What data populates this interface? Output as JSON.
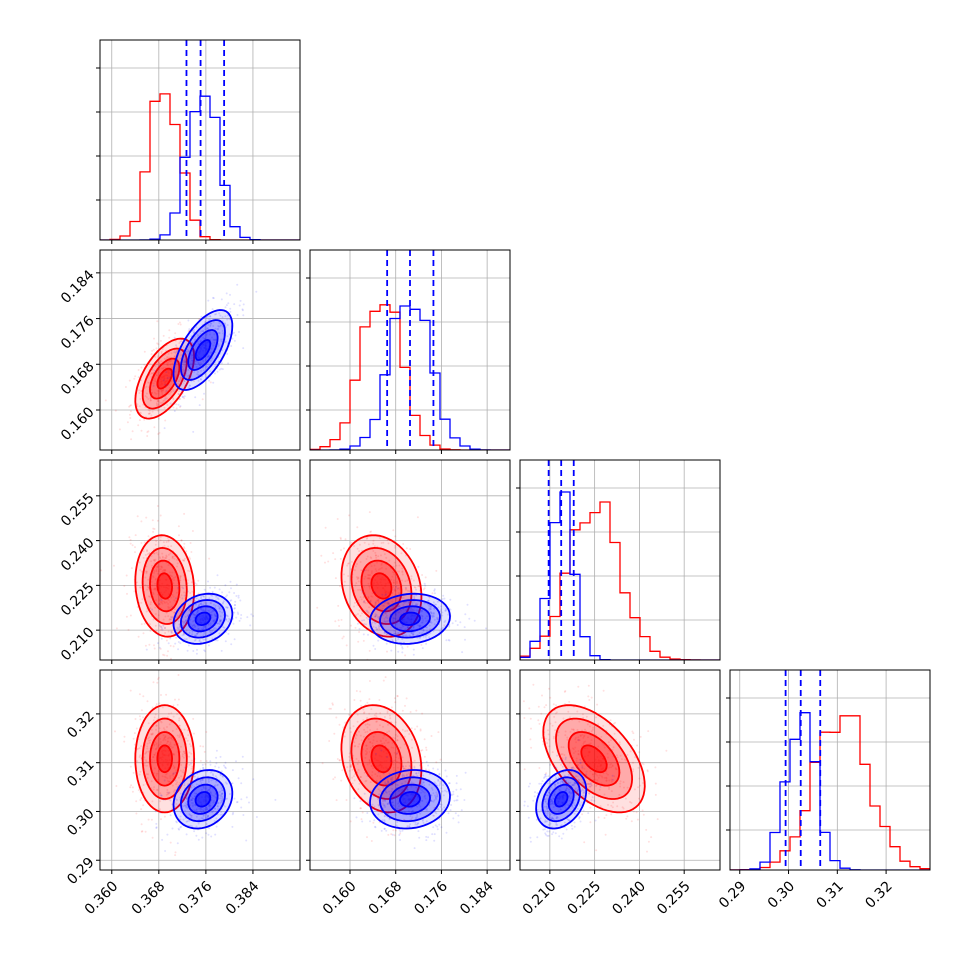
{
  "colors": {
    "series_a": "#ff0000",
    "series_b": "#0000ff",
    "grid": "#b0b0b0",
    "axis": "#000000"
  },
  "chart_data": {
    "type": "corner",
    "grid": true,
    "parameters": [
      {
        "range": [
          0.358,
          0.392
        ],
        "ticks": [
          0.36,
          0.368,
          0.376,
          0.384
        ],
        "tick_labels": [
          "0.360",
          "0.368",
          "0.376",
          "0.384"
        ]
      },
      {
        "range": [
          0.153,
          0.188
        ],
        "ticks": [
          0.16,
          0.168,
          0.176,
          0.184
        ],
        "tick_labels": [
          "0.160",
          "0.168",
          "0.176",
          "0.184"
        ]
      },
      {
        "range": [
          0.2,
          0.267
        ],
        "ticks": [
          0.21,
          0.225,
          0.24,
          0.255
        ],
        "tick_labels": [
          "0.210",
          "0.225",
          "0.240",
          "0.255"
        ]
      },
      {
        "range": [
          0.288,
          0.329
        ],
        "ticks": [
          0.29,
          0.3,
          0.31,
          0.32
        ],
        "tick_labels": [
          "0.29",
          "0.30",
          "0.31",
          "0.32"
        ]
      }
    ],
    "series": [
      {
        "color": "#ff0000",
        "mean": [
          0.369,
          0.1655,
          0.2248,
          0.3108
        ],
        "sd": [
          0.0025,
          0.0035,
          0.0085,
          0.0055
        ],
        "corr": [
          [
            1,
            0.55,
            -0.1,
            0.0
          ],
          [
            0.55,
            1,
            -0.2,
            -0.2
          ],
          [
            -0.1,
            -0.2,
            1,
            -0.5
          ],
          [
            0.0,
            -0.2,
            -0.5,
            1
          ]
        ],
        "quantiles": []
      },
      {
        "color": "#0000ff",
        "mean": [
          0.3755,
          0.1705,
          0.2138,
          0.3025
        ],
        "sd": [
          0.0025,
          0.0035,
          0.0042,
          0.003
        ],
        "corr": [
          [
            1,
            0.6,
            0.2,
            0.2
          ],
          [
            0.6,
            1,
            0.1,
            0.1
          ],
          [
            0.2,
            0.1,
            1,
            0.3
          ],
          [
            0.2,
            0.1,
            0.3,
            1
          ]
        ],
        "quantiles": [
          [
            0.3727,
            0.3751,
            0.3791
          ],
          [
            0.1665,
            0.1705,
            0.1746
          ],
          [
            0.2096,
            0.2138,
            0.218
          ],
          [
            0.2994,
            0.3025,
            0.3065
          ]
        ]
      }
    ]
  }
}
